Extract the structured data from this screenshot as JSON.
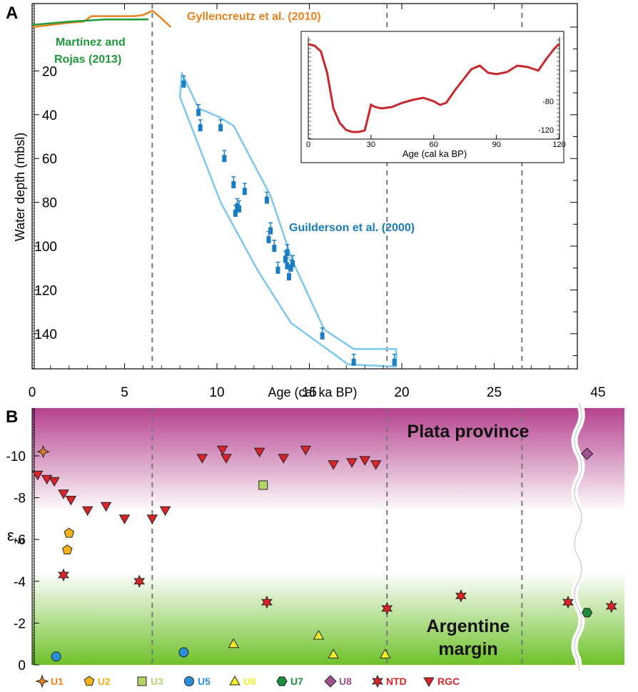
{
  "panels": {
    "a": "A",
    "b": "B"
  },
  "colors": {
    "orange": "#e8821e",
    "green": "#1f9a3c",
    "blue": "#1a7cc1",
    "lightblue": "#7cc7ee",
    "red": "#d9232a",
    "inset_red": "#c8262a",
    "purple": "#a8207a",
    "lime": "#6ec12a"
  },
  "chart_data": [
    {
      "type": "scatter",
      "panel": "A",
      "xlabel": "Age (cal ka BP)",
      "ylabel": "Water depth (mbsl)",
      "xlim": [
        0,
        30
      ],
      "ylim": [
        155,
        0
      ],
      "x_ticks": [
        "0",
        "5",
        "10",
        "15",
        "20",
        "25",
        "45"
      ],
      "y_ticks": [
        "20",
        "40",
        "60",
        "80",
        "100",
        "120",
        "140"
      ],
      "reference_lines_x": [
        6.5,
        19.2,
        26.5
      ],
      "annotations": {
        "gyllencreutz": "Gyllencreutz et al. (2010)",
        "martinez_1": "Martínez and",
        "martinez_2": "Rojas (2013)",
        "guilderson": "Guilderson et al. (2000)"
      },
      "gyllencreutz_curve": {
        "x": [
          0,
          1,
          2,
          2.8,
          3.2,
          5.5,
          6.0,
          6.5,
          7.0,
          7.5
        ],
        "y": [
          0,
          -1,
          -2,
          -2.5,
          -5,
          -5,
          -5.5,
          -7.5,
          -4,
          0
        ]
      },
      "martinez_curve": {
        "x": [
          0,
          2,
          4,
          6.3
        ],
        "y": [
          -1,
          -2.5,
          -3.5,
          -3.5
        ]
      },
      "guilderson_points": {
        "x": [
          8.2,
          9.0,
          9.1,
          10.2,
          10.4,
          10.9,
          11.0,
          11.1,
          11.2,
          11.5,
          12.7,
          12.8,
          12.9,
          13.1,
          13.3,
          13.7,
          13.8,
          13.8,
          13.9,
          14.0,
          14.1,
          15.7,
          17.4,
          19.6
        ],
        "y": [
          26,
          39,
          46,
          46,
          60,
          72,
          85,
          82,
          83,
          75,
          79,
          97,
          93,
          101,
          111,
          106,
          103,
          109,
          114,
          110,
          108,
          141,
          153,
          153
        ],
        "error_up": [
          3,
          3,
          3,
          3,
          3,
          3,
          3,
          3,
          3,
          3,
          3,
          3,
          3,
          3,
          3,
          3,
          3,
          3,
          3,
          3,
          3,
          3,
          3,
          3
        ]
      },
      "guilderson_envelope": {
        "x": [
          8.1,
          9.0,
          10.1,
          10.9,
          12.9,
          14.1,
          15.8,
          17.4,
          19.7,
          19.7,
          17.1,
          14.0,
          12.2,
          10.2,
          8.0,
          8.1
        ],
        "y": [
          21,
          37,
          41,
          45,
          77,
          107,
          138,
          147,
          147,
          155,
          154,
          135,
          111,
          80,
          32,
          21
        ]
      }
    },
    {
      "type": "line",
      "panel": "A inset",
      "xlabel": "Age (cal ka BP)",
      "ylabel": "",
      "xlim": [
        0,
        120
      ],
      "ylim": [
        -140,
        10
      ],
      "x_ticks": [
        "0",
        "30",
        "60",
        "90",
        "120"
      ],
      "y_ticks": [
        "-80",
        "-120"
      ],
      "x": [
        0,
        3,
        6,
        9,
        12,
        15,
        18,
        21,
        24,
        27,
        30,
        32,
        35,
        40,
        45,
        50,
        55,
        60,
        63,
        66,
        70,
        74,
        78,
        82,
        86,
        90,
        95,
        100,
        105,
        110,
        114,
        118,
        120
      ],
      "y": [
        0,
        -2,
        -10,
        -40,
        -90,
        -110,
        -120,
        -123,
        -123,
        -121,
        -85,
        -88,
        -90,
        -88,
        -82,
        -78,
        -75,
        -80,
        -85,
        -82,
        -65,
        -50,
        -35,
        -30,
        -40,
        -42,
        -39,
        -30,
        -32,
        -37,
        -20,
        -5,
        0
      ]
    },
    {
      "type": "scatter",
      "panel": "B",
      "xlabel": "",
      "ylabel": "εNd",
      "ylim": [
        0,
        -11.5
      ],
      "y_ticks": [
        "-10",
        "-8",
        "-6",
        "-4",
        "-2",
        "0"
      ],
      "bands": {
        "upper": "Plata province",
        "lower_1": "Argentine",
        "lower_2": "margin"
      },
      "series": [
        {
          "name": "U1",
          "color": "#e8821e",
          "marker": "star4",
          "x": [
            0.6
          ],
          "y": [
            -10.2
          ]
        },
        {
          "name": "U2",
          "color": "#f2b21a",
          "marker": "pentagon",
          "x": [
            2.0,
            1.9
          ],
          "y": [
            -6.3,
            -5.5
          ]
        },
        {
          "name": "U3",
          "color": "#b5d56a",
          "marker": "square",
          "x": [
            12.5
          ],
          "y": [
            -8.6
          ]
        },
        {
          "name": "U5",
          "color": "#2a8fd8",
          "marker": "circle",
          "x": [
            1.3,
            8.2
          ],
          "y": [
            -0.4,
            -0.6
          ]
        },
        {
          "name": "U6",
          "color": "#f4ee2a",
          "marker": "triangle",
          "x": [
            10.9,
            15.5,
            16.3,
            19.1
          ],
          "y": [
            -1.0,
            -1.4,
            -0.5,
            -0.5
          ]
        },
        {
          "name": "U7",
          "color": "#1a8c3a",
          "marker": "hexagon",
          "x": [
            45.0
          ],
          "y": [
            -2.5
          ]
        },
        {
          "name": "U8",
          "color": "#a0508e",
          "marker": "diamond",
          "x": [
            45.0
          ],
          "y": [
            -10.1
          ]
        },
        {
          "name": "NTD",
          "color": "#d9232a",
          "marker": "star6",
          "x": [
            1.7,
            5.8,
            12.7,
            19.2,
            23.2,
            44.3,
            45.9
          ],
          "y": [
            -4.3,
            -4.0,
            -3.0,
            -2.7,
            -3.3,
            -3.0,
            -2.8
          ]
        },
        {
          "name": "RGC",
          "color": "#d9232a",
          "marker": "tridown",
          "x": [
            0.3,
            0.8,
            1.2,
            1.7,
            2.1,
            3.0,
            4.0,
            5.0,
            6.5,
            7.2,
            9.2,
            10.3,
            10.5,
            12.3,
            13.6,
            14.8,
            16.3,
            17.3,
            18.0,
            18.6
          ],
          "y": [
            -9.1,
            -8.9,
            -8.8,
            -8.2,
            -7.9,
            -7.4,
            -7.6,
            -7.0,
            -7.0,
            -7.4,
            -9.9,
            -10.3,
            -9.9,
            -10.2,
            -9.9,
            -10.3,
            -9.6,
            -9.7,
            -9.8,
            -9.6
          ]
        }
      ]
    }
  ]
}
